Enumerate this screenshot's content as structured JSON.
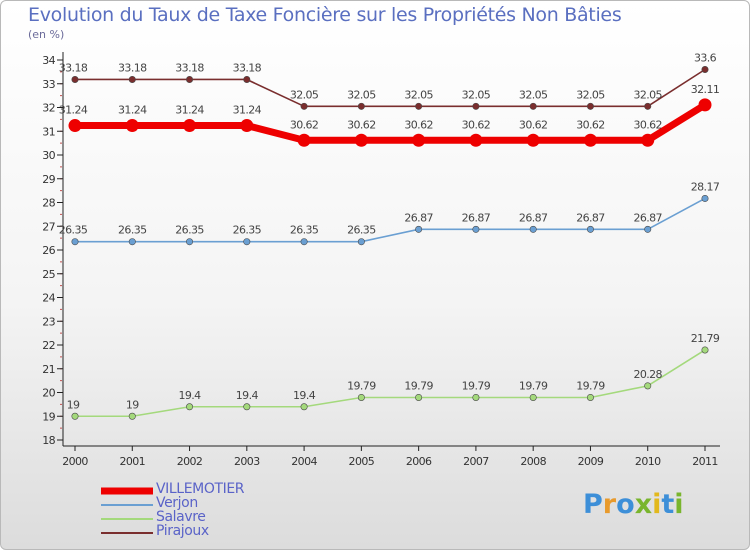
{
  "title": "Evolution du Taux de Taxe Foncière sur les Propriétés Non Bâties",
  "unit_label": "(en %)",
  "brand": "Proxiti",
  "chart_data": {
    "type": "line",
    "title": "Evolution du Taux de Taxe Foncière sur les Propriétés Non Bâties",
    "ylabel": "(en %)",
    "xlabel": "",
    "x": [
      "2000",
      "2001",
      "2002",
      "2003",
      "2004",
      "2005",
      "2006",
      "2007",
      "2008",
      "2009",
      "2010",
      "2011"
    ],
    "ylim": [
      18,
      34
    ],
    "yticks": [
      "18",
      "19",
      "20",
      "21",
      "22",
      "23",
      "24",
      "25",
      "26",
      "27",
      "28",
      "29",
      "30",
      "31",
      "32",
      "33",
      "34"
    ],
    "grid": false,
    "legend_position": "bottom-left",
    "series": [
      {
        "name": "VILLEMOTIER",
        "color": "#ee0000",
        "values": [
          31.24,
          31.24,
          31.24,
          31.24,
          30.62,
          30.62,
          30.62,
          30.62,
          30.62,
          30.62,
          30.62,
          32.11
        ],
        "labels": [
          "31.24",
          "31.24",
          "31.24",
          "31.24",
          "30.62",
          "30.62",
          "30.62",
          "30.62",
          "30.62",
          "30.62",
          "30.62",
          "32.11"
        ]
      },
      {
        "name": "Verjon",
        "color": "#6a9fd2",
        "values": [
          26.35,
          26.35,
          26.35,
          26.35,
          26.35,
          26.35,
          26.87,
          26.87,
          26.87,
          26.87,
          26.87,
          28.17
        ],
        "labels": [
          "26.35",
          "26.35",
          "26.35",
          "26.35",
          "26.35",
          "26.35",
          "26.87",
          "26.87",
          "26.87",
          "26.87",
          "26.87",
          "28.17"
        ]
      },
      {
        "name": "Salavre",
        "color": "#a4d97c",
        "values": [
          19,
          19,
          19.4,
          19.4,
          19.4,
          19.79,
          19.79,
          19.79,
          19.79,
          19.79,
          20.28,
          21.79
        ],
        "labels": [
          "19",
          "19",
          "19.4",
          "19.4",
          "19.4",
          "19.79",
          "19.79",
          "19.79",
          "19.79",
          "19.79",
          "20.28",
          "21.79"
        ]
      },
      {
        "name": "Pirajoux",
        "color": "#7a2e2e",
        "values": [
          33.18,
          33.18,
          33.18,
          33.18,
          32.05,
          32.05,
          32.05,
          32.05,
          32.05,
          32.05,
          32.05,
          33.6
        ],
        "labels": [
          "33.18",
          "33.18",
          "33.18",
          "33.18",
          "32.05",
          "32.05",
          "32.05",
          "32.05",
          "32.05",
          "32.05",
          "32.05",
          "33.6"
        ]
      }
    ]
  }
}
